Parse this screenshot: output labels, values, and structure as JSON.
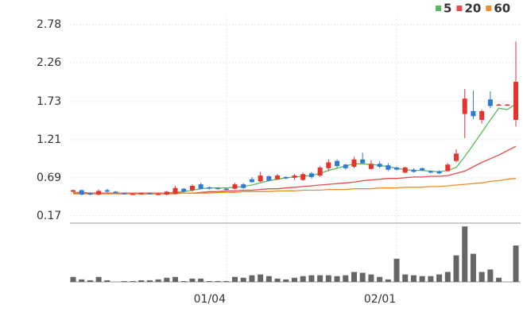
{
  "chart_data": {
    "type": "candlestick",
    "categories": [
      null,
      null,
      null,
      null,
      null,
      null,
      null,
      null,
      null,
      null,
      null,
      null,
      null,
      null,
      null,
      null,
      null,
      null,
      "01/04",
      null,
      null,
      null,
      null,
      null,
      null,
      null,
      null,
      null,
      null,
      null,
      null,
      null,
      null,
      null,
      null,
      null,
      null,
      null,
      "02/01",
      null,
      null,
      null,
      null,
      null,
      null,
      null,
      null,
      null,
      null,
      null,
      null,
      null,
      null
    ],
    "open": [
      0.5,
      0.52,
      0.48,
      0.46,
      0.52,
      0.5,
      0.48,
      0.47,
      0.47,
      0.48,
      0.47,
      0.46,
      0.47,
      0.54,
      0.52,
      0.6,
      0.56,
      0.55,
      0.54,
      0.54,
      0.6,
      0.67,
      0.64,
      0.71,
      0.67,
      0.7,
      0.69,
      0.66,
      0.75,
      0.72,
      0.82,
      0.92,
      0.87,
      0.84,
      0.94,
      0.81,
      0.88,
      0.86,
      0.83,
      0.76,
      0.8,
      0.82,
      0.78,
      0.78,
      0.78,
      0.92,
      1.56,
      1.6,
      1.48,
      1.76,
      1.69,
      1.69,
      1.48
    ],
    "high": [
      0.53,
      0.53,
      0.49,
      0.53,
      0.54,
      0.51,
      0.49,
      0.48,
      0.49,
      0.49,
      0.48,
      0.51,
      0.58,
      0.55,
      0.6,
      0.62,
      0.57,
      0.56,
      0.55,
      0.62,
      0.62,
      0.7,
      0.77,
      0.72,
      0.74,
      0.71,
      0.74,
      0.76,
      0.77,
      0.85,
      0.94,
      0.94,
      0.88,
      0.98,
      1.03,
      0.93,
      0.91,
      0.89,
      0.84,
      0.84,
      0.82,
      0.83,
      0.79,
      0.79,
      0.89,
      1.08,
      1.9,
      1.88,
      1.62,
      1.87,
      1.7,
      1.7,
      2.55
    ],
    "low": [
      0.49,
      0.45,
      0.45,
      0.45,
      0.49,
      0.48,
      0.46,
      0.46,
      0.46,
      0.46,
      0.46,
      0.45,
      0.46,
      0.49,
      0.5,
      0.53,
      0.53,
      0.53,
      0.52,
      0.53,
      0.54,
      0.62,
      0.63,
      0.64,
      0.66,
      0.67,
      0.66,
      0.65,
      0.68,
      0.7,
      0.78,
      0.83,
      0.8,
      0.82,
      0.88,
      0.8,
      0.82,
      0.78,
      0.79,
      0.75,
      0.76,
      0.78,
      0.75,
      0.74,
      0.77,
      0.9,
      1.23,
      1.49,
      1.43,
      1.64,
      1.68,
      1.68,
      1.39
    ],
    "close": [
      0.52,
      0.46,
      0.46,
      0.51,
      0.5,
      0.48,
      0.47,
      0.47,
      0.48,
      0.47,
      0.47,
      0.5,
      0.55,
      0.5,
      0.58,
      0.54,
      0.54,
      0.54,
      0.53,
      0.6,
      0.55,
      0.63,
      0.72,
      0.65,
      0.72,
      0.68,
      0.72,
      0.74,
      0.7,
      0.83,
      0.9,
      0.85,
      0.82,
      0.94,
      0.89,
      0.88,
      0.84,
      0.8,
      0.8,
      0.83,
      0.77,
      0.79,
      0.76,
      0.75,
      0.87,
      1.02,
      1.77,
      1.53,
      1.6,
      1.67,
      1.69,
      1.69,
      2.0
    ],
    "up_color": "#e8322e",
    "down_color": "#2f7ad6",
    "series": [
      {
        "name": "5",
        "color": "#5cb85c",
        "values": [
          0.49,
          0.49,
          0.48,
          0.48,
          0.48,
          0.48,
          0.48,
          0.47,
          0.47,
          0.47,
          0.47,
          0.48,
          0.49,
          0.5,
          0.52,
          0.54,
          0.55,
          0.55,
          0.55,
          0.56,
          0.57,
          0.59,
          0.62,
          0.65,
          0.67,
          0.69,
          0.7,
          0.71,
          0.72,
          0.75,
          0.79,
          0.82,
          0.85,
          0.88,
          0.88,
          0.87,
          0.86,
          0.84,
          0.82,
          0.8,
          0.79,
          0.79,
          0.78,
          0.77,
          0.79,
          0.83,
          0.98,
          1.14,
          1.31,
          1.48,
          1.64,
          1.62,
          1.7
        ]
      },
      {
        "name": "20",
        "color": "#e84a4a",
        "values": [
          0.48,
          0.48,
          0.48,
          0.48,
          0.48,
          0.48,
          0.48,
          0.48,
          0.48,
          0.48,
          0.48,
          0.48,
          0.48,
          0.48,
          0.48,
          0.49,
          0.5,
          0.5,
          0.51,
          0.51,
          0.52,
          0.52,
          0.53,
          0.54,
          0.54,
          0.55,
          0.56,
          0.57,
          0.58,
          0.59,
          0.6,
          0.61,
          0.62,
          0.63,
          0.65,
          0.66,
          0.67,
          0.68,
          0.68,
          0.69,
          0.7,
          0.7,
          0.71,
          0.71,
          0.72,
          0.75,
          0.78,
          0.84,
          0.9,
          0.95,
          1.0,
          1.06,
          1.12
        ]
      },
      {
        "name": "60",
        "color": "#f08c2c",
        "values": [
          0.47,
          0.47,
          0.47,
          0.47,
          0.47,
          0.47,
          0.47,
          0.47,
          0.47,
          0.47,
          0.47,
          0.47,
          0.47,
          0.48,
          0.48,
          0.48,
          0.48,
          0.49,
          0.49,
          0.49,
          0.5,
          0.5,
          0.5,
          0.5,
          0.51,
          0.51,
          0.51,
          0.52,
          0.52,
          0.52,
          0.53,
          0.53,
          0.53,
          0.54,
          0.54,
          0.54,
          0.55,
          0.55,
          0.55,
          0.56,
          0.56,
          0.56,
          0.57,
          0.57,
          0.58,
          0.59,
          0.6,
          0.61,
          0.62,
          0.64,
          0.65,
          0.67,
          0.68
        ]
      }
    ],
    "ylim": [
      0.07,
      2.9
    ],
    "yticks": [
      0.17,
      0.69,
      1.21,
      1.73,
      2.26,
      2.78
    ],
    "volume": {
      "color": "#666666",
      "ylim": [
        0,
        70
      ],
      "values": [
        6,
        3,
        2,
        6,
        2,
        0,
        1,
        1,
        2,
        2,
        3,
        5,
        6,
        1,
        4,
        4,
        1,
        1,
        1,
        6,
        5,
        8,
        9,
        7,
        4,
        3,
        5,
        7,
        8,
        8,
        8,
        7,
        8,
        12,
        11,
        9,
        6,
        3,
        28,
        9,
        8,
        7,
        7,
        9,
        12,
        32,
        67,
        34,
        12,
        15,
        5,
        0,
        44
      ]
    }
  }
}
